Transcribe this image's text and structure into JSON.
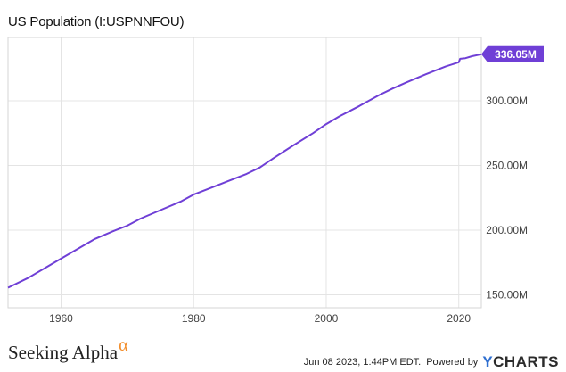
{
  "title": "US Population (I:USPNNFOU)",
  "branding": {
    "logo_text": "Seeking Alpha",
    "logo_mark": "α",
    "timestamp": "Jun 08 2023, 1:44PM EDT.",
    "powered_by": "Powered by",
    "provider_y": "Y",
    "provider_rest": "CHARTS"
  },
  "chart_data": {
    "type": "line",
    "title": "US Population (I:USPNNFOU)",
    "xlabel": "",
    "ylabel": "",
    "x_ticks": [
      "1960",
      "1980",
      "2000",
      "2020"
    ],
    "x_tick_values": [
      1960,
      1980,
      2000,
      2020
    ],
    "y_ticks": [
      "150.00M",
      "200.00M",
      "250.00M",
      "300.00M"
    ],
    "y_tick_values": [
      150,
      200,
      250,
      300
    ],
    "y_units": "millions",
    "xlim": [
      1952,
      2023.4
    ],
    "ylim": [
      140,
      349
    ],
    "grid": true,
    "line_color": "#6f3fd6",
    "last_value_label": "336.05M",
    "series": [
      {
        "values": [
          [
            1952,
            155.5
          ],
          [
            1955,
            163.0
          ],
          [
            1958,
            172.0
          ],
          [
            1960,
            178.0
          ],
          [
            1963,
            187.0
          ],
          [
            1965,
            193.0
          ],
          [
            1968,
            199.5
          ],
          [
            1970,
            203.5
          ],
          [
            1972,
            209.0
          ],
          [
            1975,
            215.5
          ],
          [
            1978,
            222.0
          ],
          [
            1980,
            227.5
          ],
          [
            1983,
            233.5
          ],
          [
            1985,
            237.5
          ],
          [
            1988,
            243.5
          ],
          [
            1990,
            248.5
          ],
          [
            1992,
            255.5
          ],
          [
            1995,
            265.5
          ],
          [
            1998,
            275.0
          ],
          [
            2000,
            282.0
          ],
          [
            2002,
            288.0
          ],
          [
            2005,
            296.0
          ],
          [
            2008,
            304.5
          ],
          [
            2010,
            309.5
          ],
          [
            2012,
            314.0
          ],
          [
            2015,
            320.5
          ],
          [
            2018,
            326.5
          ],
          [
            2020,
            329.8
          ],
          [
            2020.2,
            332.5
          ],
          [
            2021,
            333.0
          ],
          [
            2022,
            334.5
          ],
          [
            2023.4,
            336.05
          ]
        ]
      }
    ]
  }
}
